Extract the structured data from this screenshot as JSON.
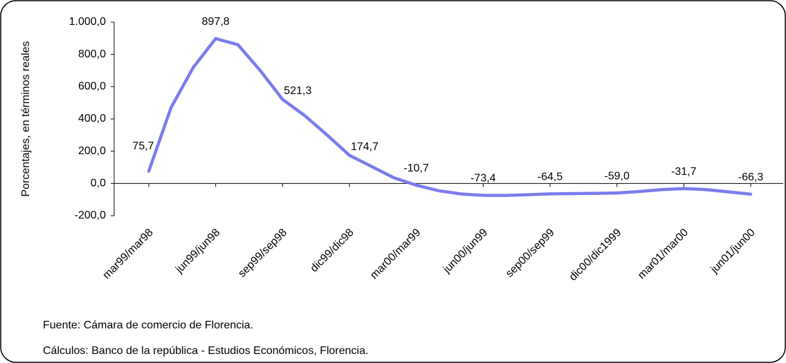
{
  "chart_data": {
    "type": "line",
    "y_label": "Porcentajes, en términos reales",
    "categories": [
      "mar99/mar98",
      null,
      null,
      "jun99/jun98",
      null,
      null,
      "sep99/sep98",
      null,
      null,
      "dic99/dic98",
      null,
      null,
      "mar00/mar99",
      null,
      null,
      "jun00/jun99",
      null,
      null,
      "sep00/sep99",
      null,
      null,
      "dic00/dic1999",
      null,
      null,
      "mar01/mar00",
      null,
      null,
      "jun01/jun00"
    ],
    "values": [
      75.7,
      470,
      720,
      897.8,
      860,
      700,
      521.3,
      420,
      300,
      174.7,
      105,
      35,
      -10.7,
      -45,
      -65,
      -73.4,
      -74,
      -70,
      -64.5,
      -63,
      -61,
      -59.0,
      -50,
      -38,
      -31.7,
      -38,
      -52,
      -66.3
    ],
    "value_labels": [
      "75,7",
      null,
      null,
      "897,8",
      null,
      null,
      "521,3",
      null,
      null,
      "174,7",
      null,
      null,
      "-10,7",
      null,
      null,
      "-73,4",
      null,
      null,
      "-64,5",
      null,
      null,
      "-59,0",
      null,
      null,
      "-31,7",
      null,
      null,
      "-66,3"
    ],
    "color": "#7b7bee",
    "ylim": [
      -200,
      1000
    ],
    "yticks": [
      {
        "value": -200,
        "label": "-200,0"
      },
      {
        "value": 0,
        "label": "0,0"
      },
      {
        "value": 200,
        "label": "200,0"
      },
      {
        "value": 400,
        "label": "400,0"
      },
      {
        "value": 600,
        "label": "600,0"
      },
      {
        "value": 800,
        "label": "800,0"
      },
      {
        "value": 1000,
        "label": "1.000,0"
      }
    ],
    "grid": false,
    "notes": [
      "Fuente:  Cámara de comercio de Florencia.",
      "Cálculos: Banco de la república - Estudios Económicos, Florencia."
    ]
  }
}
